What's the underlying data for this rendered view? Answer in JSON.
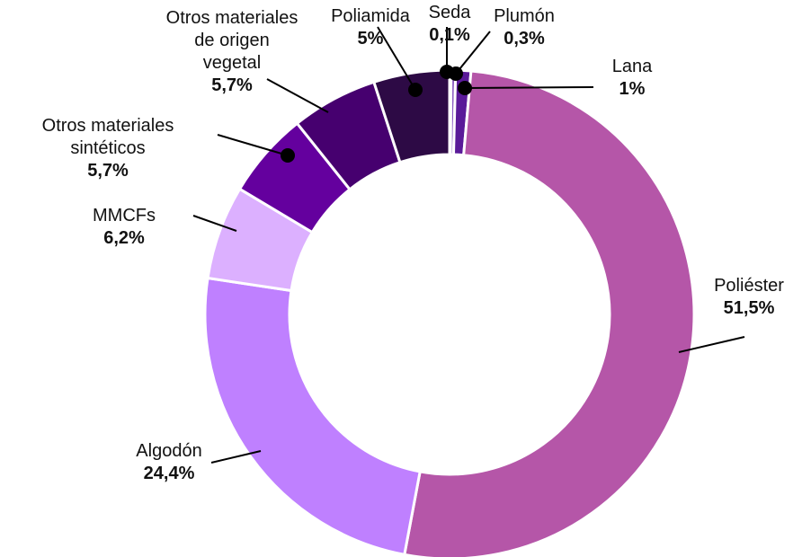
{
  "chart_data": {
    "type": "donut",
    "categories": [
      "Seda",
      "Plumón",
      "Lana",
      "Poliéster",
      "Algodón",
      "MMCFs",
      "Otros materiales sintéticos",
      "Otros materiales de origen vegetal",
      "Poliamida"
    ],
    "values": [
      0.1,
      0.3,
      1,
      51.5,
      24.4,
      6.2,
      5.7,
      5.7,
      5
    ],
    "value_labels": [
      "0,1%",
      "0,3%",
      "1%",
      "51,5%",
      "24,4%",
      "6,2%",
      "5,7%",
      "5,7%",
      "5%"
    ],
    "colors": [
      "#f2e6ff",
      "#8a5cc2",
      "#5a1a99",
      "#b556a8",
      "#bf80ff",
      "#dcb0ff",
      "#64009e",
      "#46006f",
      "#2d0a45"
    ]
  }
}
